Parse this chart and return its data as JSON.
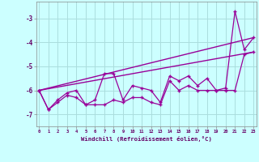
{
  "xlabel": "Windchill (Refroidissement éolien,°C)",
  "x": [
    0,
    1,
    2,
    3,
    4,
    5,
    6,
    7,
    8,
    9,
    10,
    11,
    12,
    13,
    14,
    15,
    16,
    17,
    18,
    19,
    20,
    21,
    22,
    23
  ],
  "line1_y": [
    -6.0,
    -6.8,
    -6.4,
    -6.1,
    -6.0,
    -6.6,
    -6.4,
    -5.3,
    -5.3,
    -6.4,
    -5.8,
    -5.9,
    -6.0,
    -6.5,
    -5.4,
    -5.6,
    -5.4,
    -5.8,
    -5.5,
    -6.0,
    -5.9,
    -2.7,
    -4.3,
    -3.8
  ],
  "line2_y": [
    -6.0,
    -6.8,
    -6.5,
    -6.2,
    -6.3,
    -6.6,
    -6.6,
    -6.6,
    -6.4,
    -6.5,
    -6.3,
    -6.3,
    -6.5,
    -6.6,
    -5.6,
    -6.0,
    -5.8,
    -6.0,
    -6.0,
    -6.0,
    -6.0,
    -6.0,
    -4.5,
    -4.4
  ],
  "trend1_x": [
    0,
    23
  ],
  "trend1_y": [
    -6.0,
    -3.8
  ],
  "trend2_x": [
    0,
    23
  ],
  "trend2_y": [
    -6.0,
    -4.4
  ],
  "line_color": "#990099",
  "bg_color": "#ccffff",
  "grid_color": "#aadddd",
  "text_color": "#660066",
  "ylim": [
    -7.5,
    -2.3
  ],
  "yticks": [
    -7,
    -6,
    -5,
    -4,
    -3
  ],
  "xlim": [
    -0.3,
    23.3
  ],
  "xticks": [
    0,
    1,
    2,
    3,
    4,
    5,
    6,
    7,
    8,
    9,
    10,
    11,
    12,
    13,
    14,
    15,
    16,
    17,
    18,
    19,
    20,
    21,
    22,
    23
  ]
}
